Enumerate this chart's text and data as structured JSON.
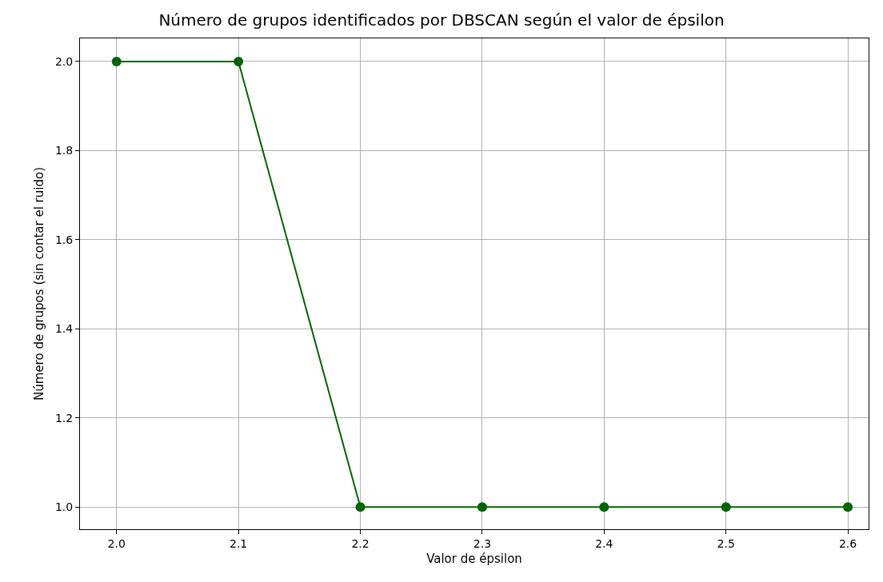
{
  "chart_data": {
    "type": "line",
    "title": "Número de grupos identificados por DBSCAN según el valor de épsilon",
    "xlabel": "Valor de épsilon",
    "ylabel": "Número de grupos (sin contar el ruido)",
    "x": [
      2.0,
      2.1,
      2.2,
      2.3,
      2.4,
      2.5,
      2.6
    ],
    "series": [
      {
        "color": "#006400",
        "values": [
          2,
          2,
          1,
          1,
          1,
          1,
          1
        ]
      }
    ],
    "xlim": [
      1.97,
      2.617
    ],
    "ylim": [
      0.95,
      2.052
    ],
    "xticks": [
      {
        "value": 2.0,
        "label": "2.0"
      },
      {
        "value": 2.1,
        "label": "2.1"
      },
      {
        "value": 2.2,
        "label": "2.2"
      },
      {
        "value": 2.3,
        "label": "2.3"
      },
      {
        "value": 2.4,
        "label": "2.4"
      },
      {
        "value": 2.5,
        "label": "2.5"
      },
      {
        "value": 2.6,
        "label": "2.6"
      }
    ],
    "yticks": [
      {
        "value": 1.0,
        "label": "1.0"
      },
      {
        "value": 1.2,
        "label": "1.2"
      },
      {
        "value": 1.4,
        "label": "1.4"
      },
      {
        "value": 1.6,
        "label": "1.6"
      },
      {
        "value": 1.8,
        "label": "1.8"
      },
      {
        "value": 2.0,
        "label": "2.0"
      }
    ],
    "grid": true,
    "marker": "circle",
    "line_style": "solid"
  }
}
